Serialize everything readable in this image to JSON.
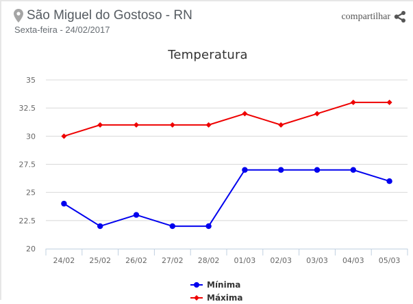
{
  "header": {
    "location": "São Miguel do Gostoso - RN",
    "date": "Sexta-feira - 24/02/2017",
    "share_label": "compartilhar",
    "location_icon": "map-pin-icon",
    "share_icon": "share-icon"
  },
  "colors": {
    "minima": "#0000ee",
    "maxima": "#ee0000",
    "grid": "#d8d8d8",
    "axis": "#c0d0e0"
  },
  "chart_data": {
    "type": "line",
    "title": "Temperatura",
    "xlabel": "",
    "ylabel": "",
    "categories": [
      "24/02",
      "25/02",
      "26/02",
      "27/02",
      "28/02",
      "01/03",
      "02/03",
      "03/03",
      "04/03",
      "05/03"
    ],
    "series": [
      {
        "name": "Mínima",
        "color": "#0000ee",
        "marker": "circle",
        "values": [
          24,
          22,
          23,
          22,
          22,
          27,
          27,
          27,
          27,
          26
        ]
      },
      {
        "name": "Máxima",
        "color": "#ee0000",
        "marker": "diamond",
        "values": [
          30,
          31,
          31,
          31,
          31,
          32,
          31,
          32,
          33,
          33
        ]
      }
    ],
    "ylim": [
      20,
      35
    ],
    "yticks": [
      "20",
      "22.5",
      "25",
      "27.5",
      "30",
      "32.5",
      "35"
    ],
    "grid": true,
    "legend_position": "bottom"
  }
}
